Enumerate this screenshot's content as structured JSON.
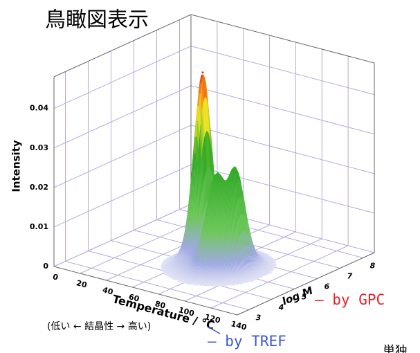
{
  "chart_data": {
    "type": "surface3d",
    "title": "鳥瞰図表示",
    "zlabel": "Intensity",
    "xlabel": "Temperature / °C",
    "ylabel": "log M",
    "xlim": [
      0,
      140
    ],
    "xticks": [
      0,
      20,
      40,
      60,
      80,
      100,
      120,
      140
    ],
    "ylim": [
      2.5,
      8.5
    ],
    "yticks": [
      3,
      4,
      5,
      6,
      7,
      8
    ],
    "zlim": [
      0,
      0.048
    ],
    "zticks": [
      0,
      0.01,
      0.02,
      0.03,
      0.04
    ],
    "grid": true,
    "series": [
      {
        "x": [
          63,
          87,
          97
        ],
        "y": [
          5.4,
          4.6,
          4.9
        ],
        "values": [
          0.047,
          0.025,
          0.026
        ]
      }
    ],
    "annotations": [
      "(低い ← 結晶性 → 高い)",
      "— by GPC",
      "— by TREF",
      "単独"
    ]
  }
}
